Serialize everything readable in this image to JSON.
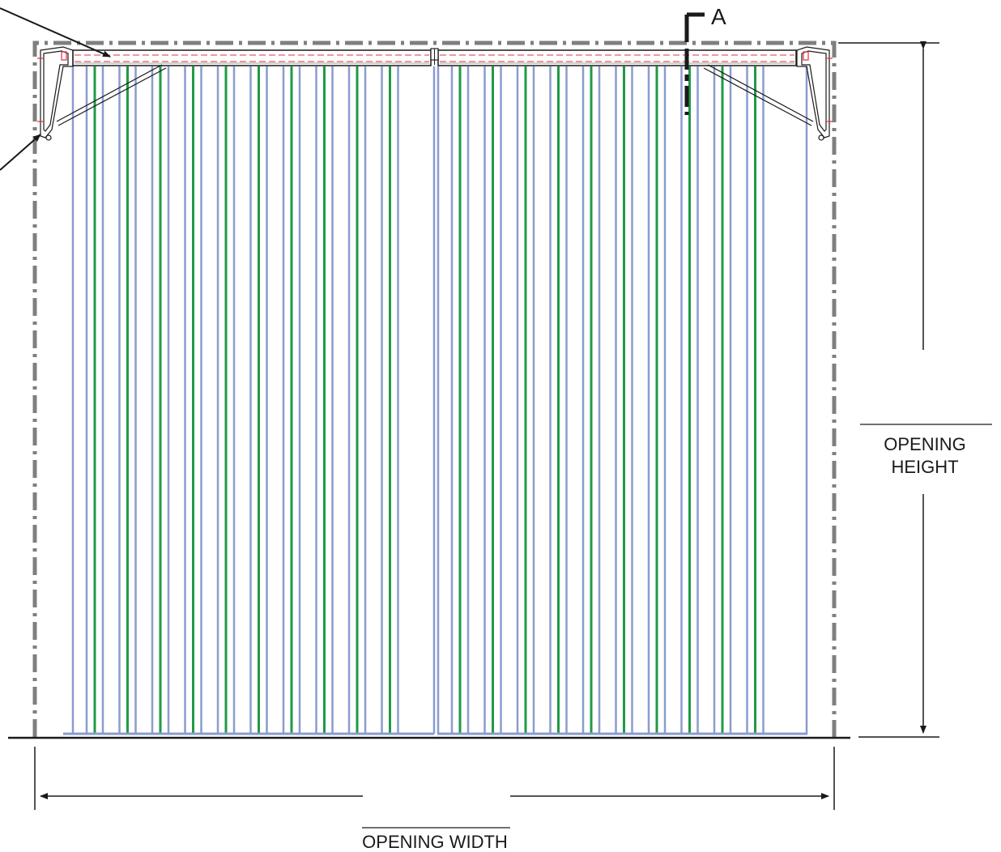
{
  "section_marker": {
    "label": "A"
  },
  "dimensions": {
    "height": {
      "line1": "OPENING",
      "line2": "HEIGHT"
    },
    "width": {
      "label": "OPENING WIDTH"
    }
  },
  "colors": {
    "frame": "#7f7f7f",
    "slat_blue": "#8a9cd0",
    "slat_green": "#1f9a47",
    "rail_red": "#e0303a",
    "ink": "#1a1a1a"
  },
  "slats": {
    "blue_count": 38,
    "green_count": 20
  }
}
